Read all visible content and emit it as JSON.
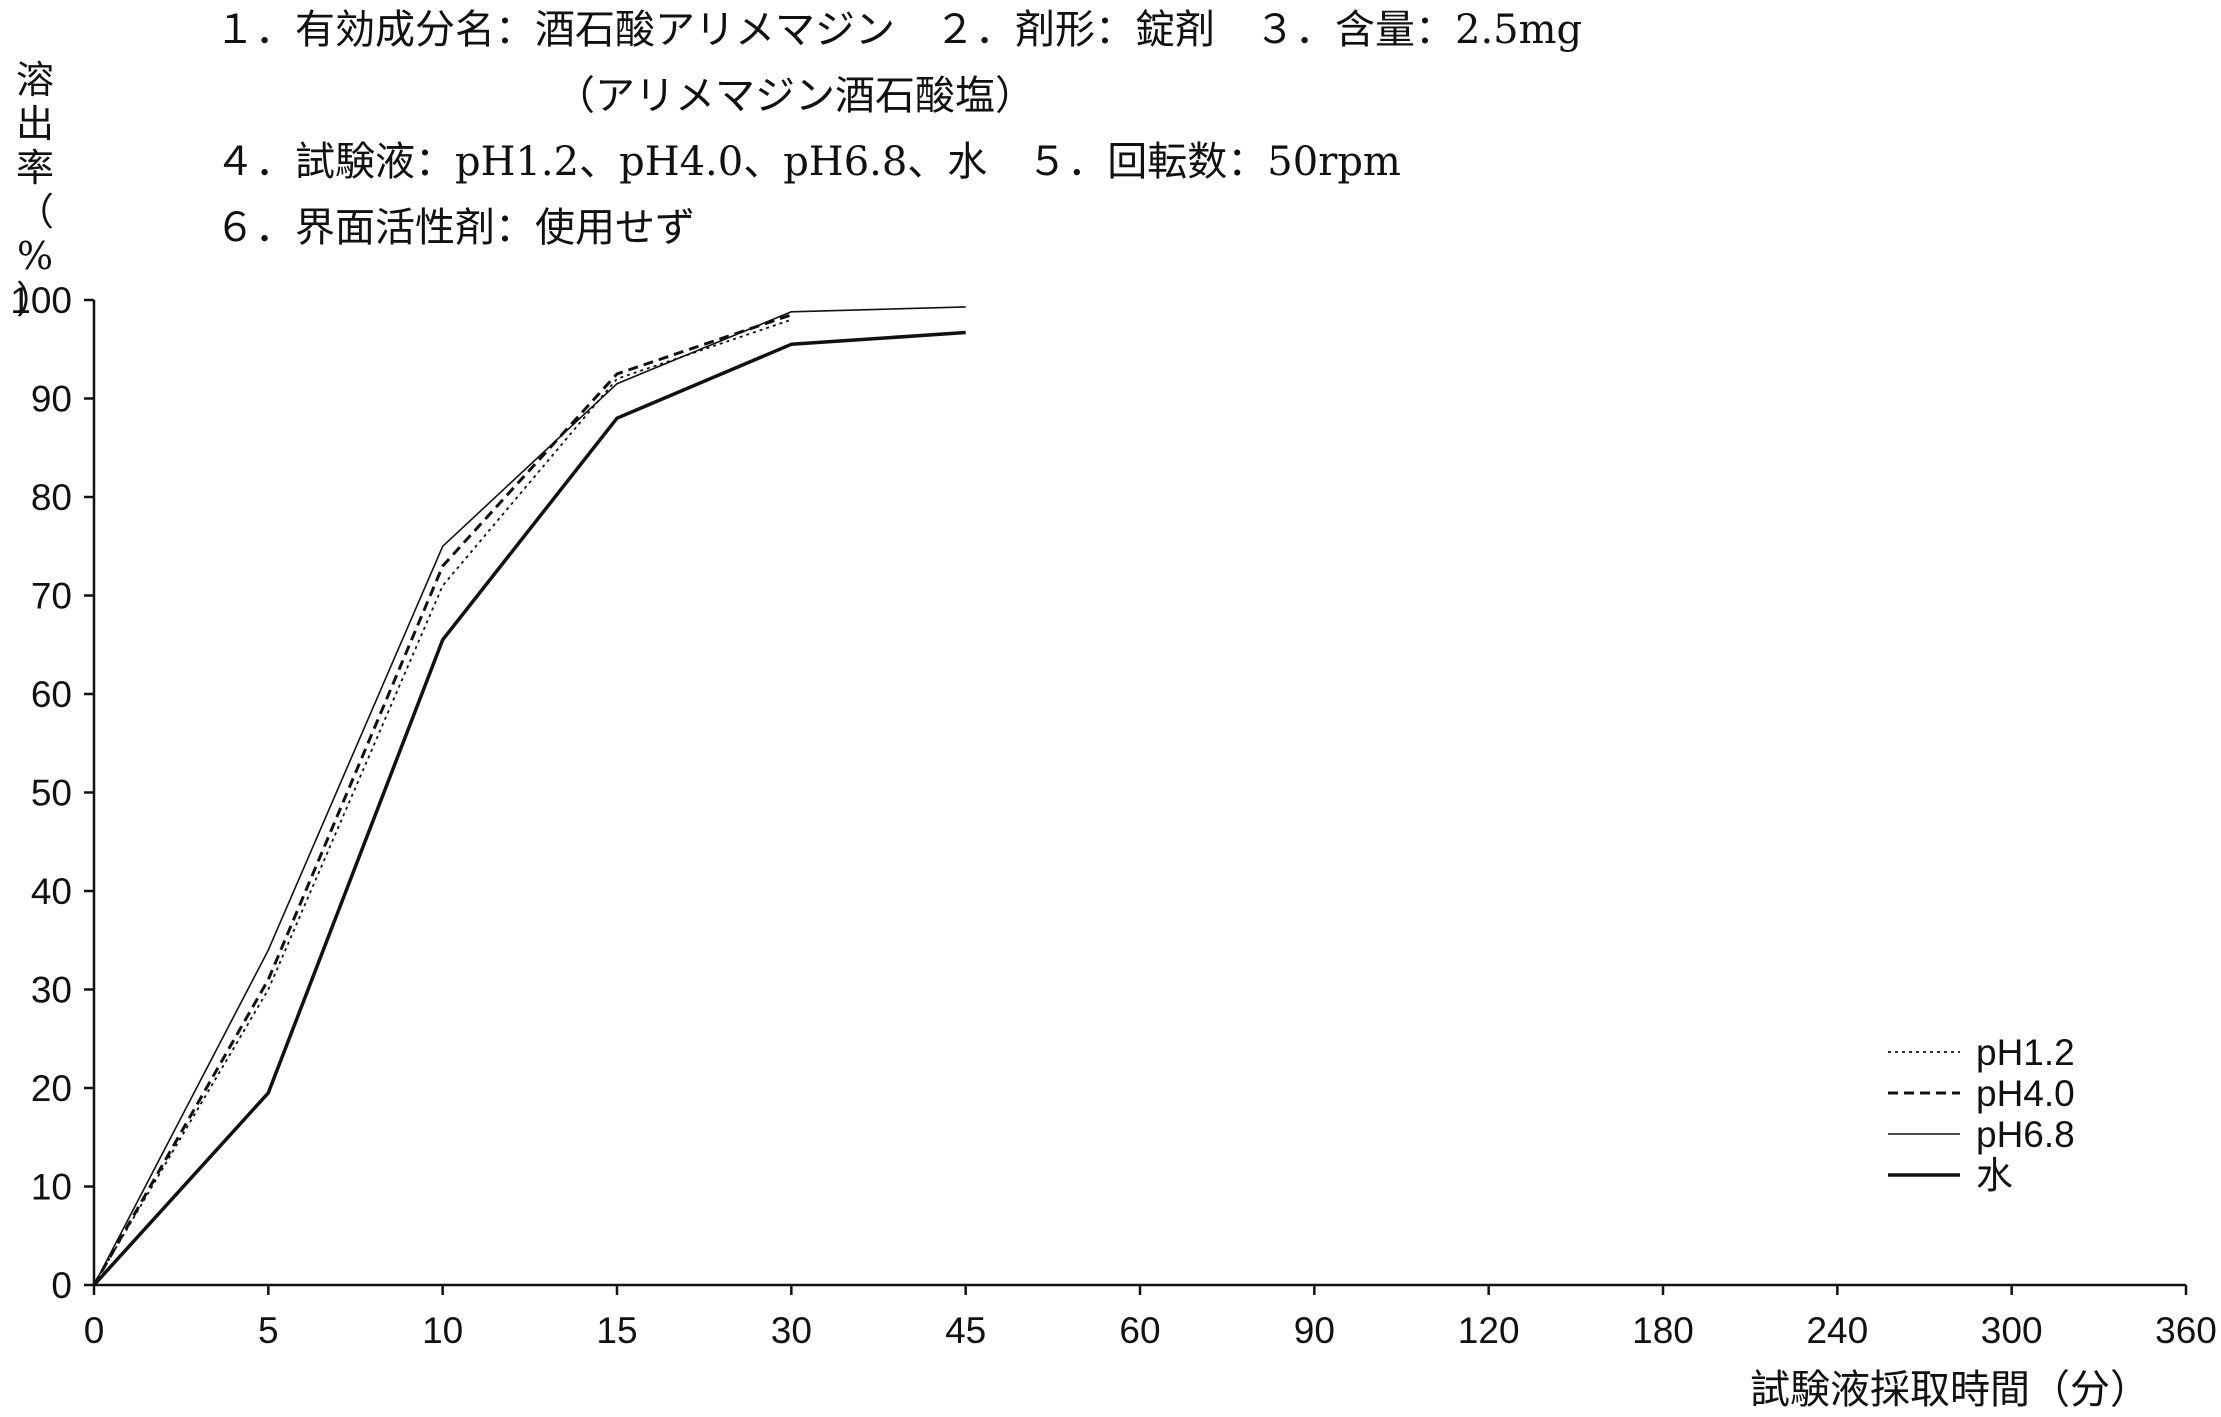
{
  "header": {
    "line1": "１．有効成分名：酒石酸アリメマジン　２．剤形：錠剤　３．含量：2.5mg",
    "line2": "（アリメマジン酒石酸塩）",
    "line3": "４．試験液：pH1.2、pH4.0、pH6.8、水　５．回転数：50rpm",
    "line4": "６．界面活性剤：使用せず"
  },
  "chart_data": {
    "type": "line",
    "title": "",
    "xlabel": "試験液採取時間（分）",
    "ylabel_chars": [
      "溶",
      "出",
      "率",
      "（",
      "%",
      "）"
    ],
    "ylabel": "溶出率（%）",
    "categories": [
      "0",
      "5",
      "10",
      "15",
      "30",
      "45",
      "60",
      "90",
      "120",
      "180",
      "240",
      "300",
      "360"
    ],
    "ylim": [
      0,
      100
    ],
    "yticks": [
      0,
      10,
      20,
      30,
      40,
      50,
      60,
      70,
      80,
      90,
      100
    ],
    "grid": false,
    "legend_position": "bottom-right",
    "series": [
      {
        "name": "pH1.2",
        "style": "dotted",
        "values": [
          0,
          30,
          71,
          92,
          98,
          null,
          null,
          null,
          null,
          null,
          null,
          null,
          null
        ]
      },
      {
        "name": "pH4.0",
        "style": "dashed",
        "values": [
          0,
          31,
          73,
          92.5,
          98.5,
          null,
          null,
          null,
          null,
          null,
          null,
          null,
          null
        ]
      },
      {
        "name": "pH6.8",
        "style": "thin",
        "values": [
          0,
          34,
          75,
          91.5,
          98.8,
          99.3,
          null,
          null,
          null,
          null,
          null,
          null,
          null
        ]
      },
      {
        "name": "水",
        "style": "solid",
        "values": [
          0,
          19.5,
          65.5,
          88,
          95.5,
          96.7,
          null,
          null,
          null,
          null,
          null,
          null,
          null
        ]
      }
    ]
  }
}
